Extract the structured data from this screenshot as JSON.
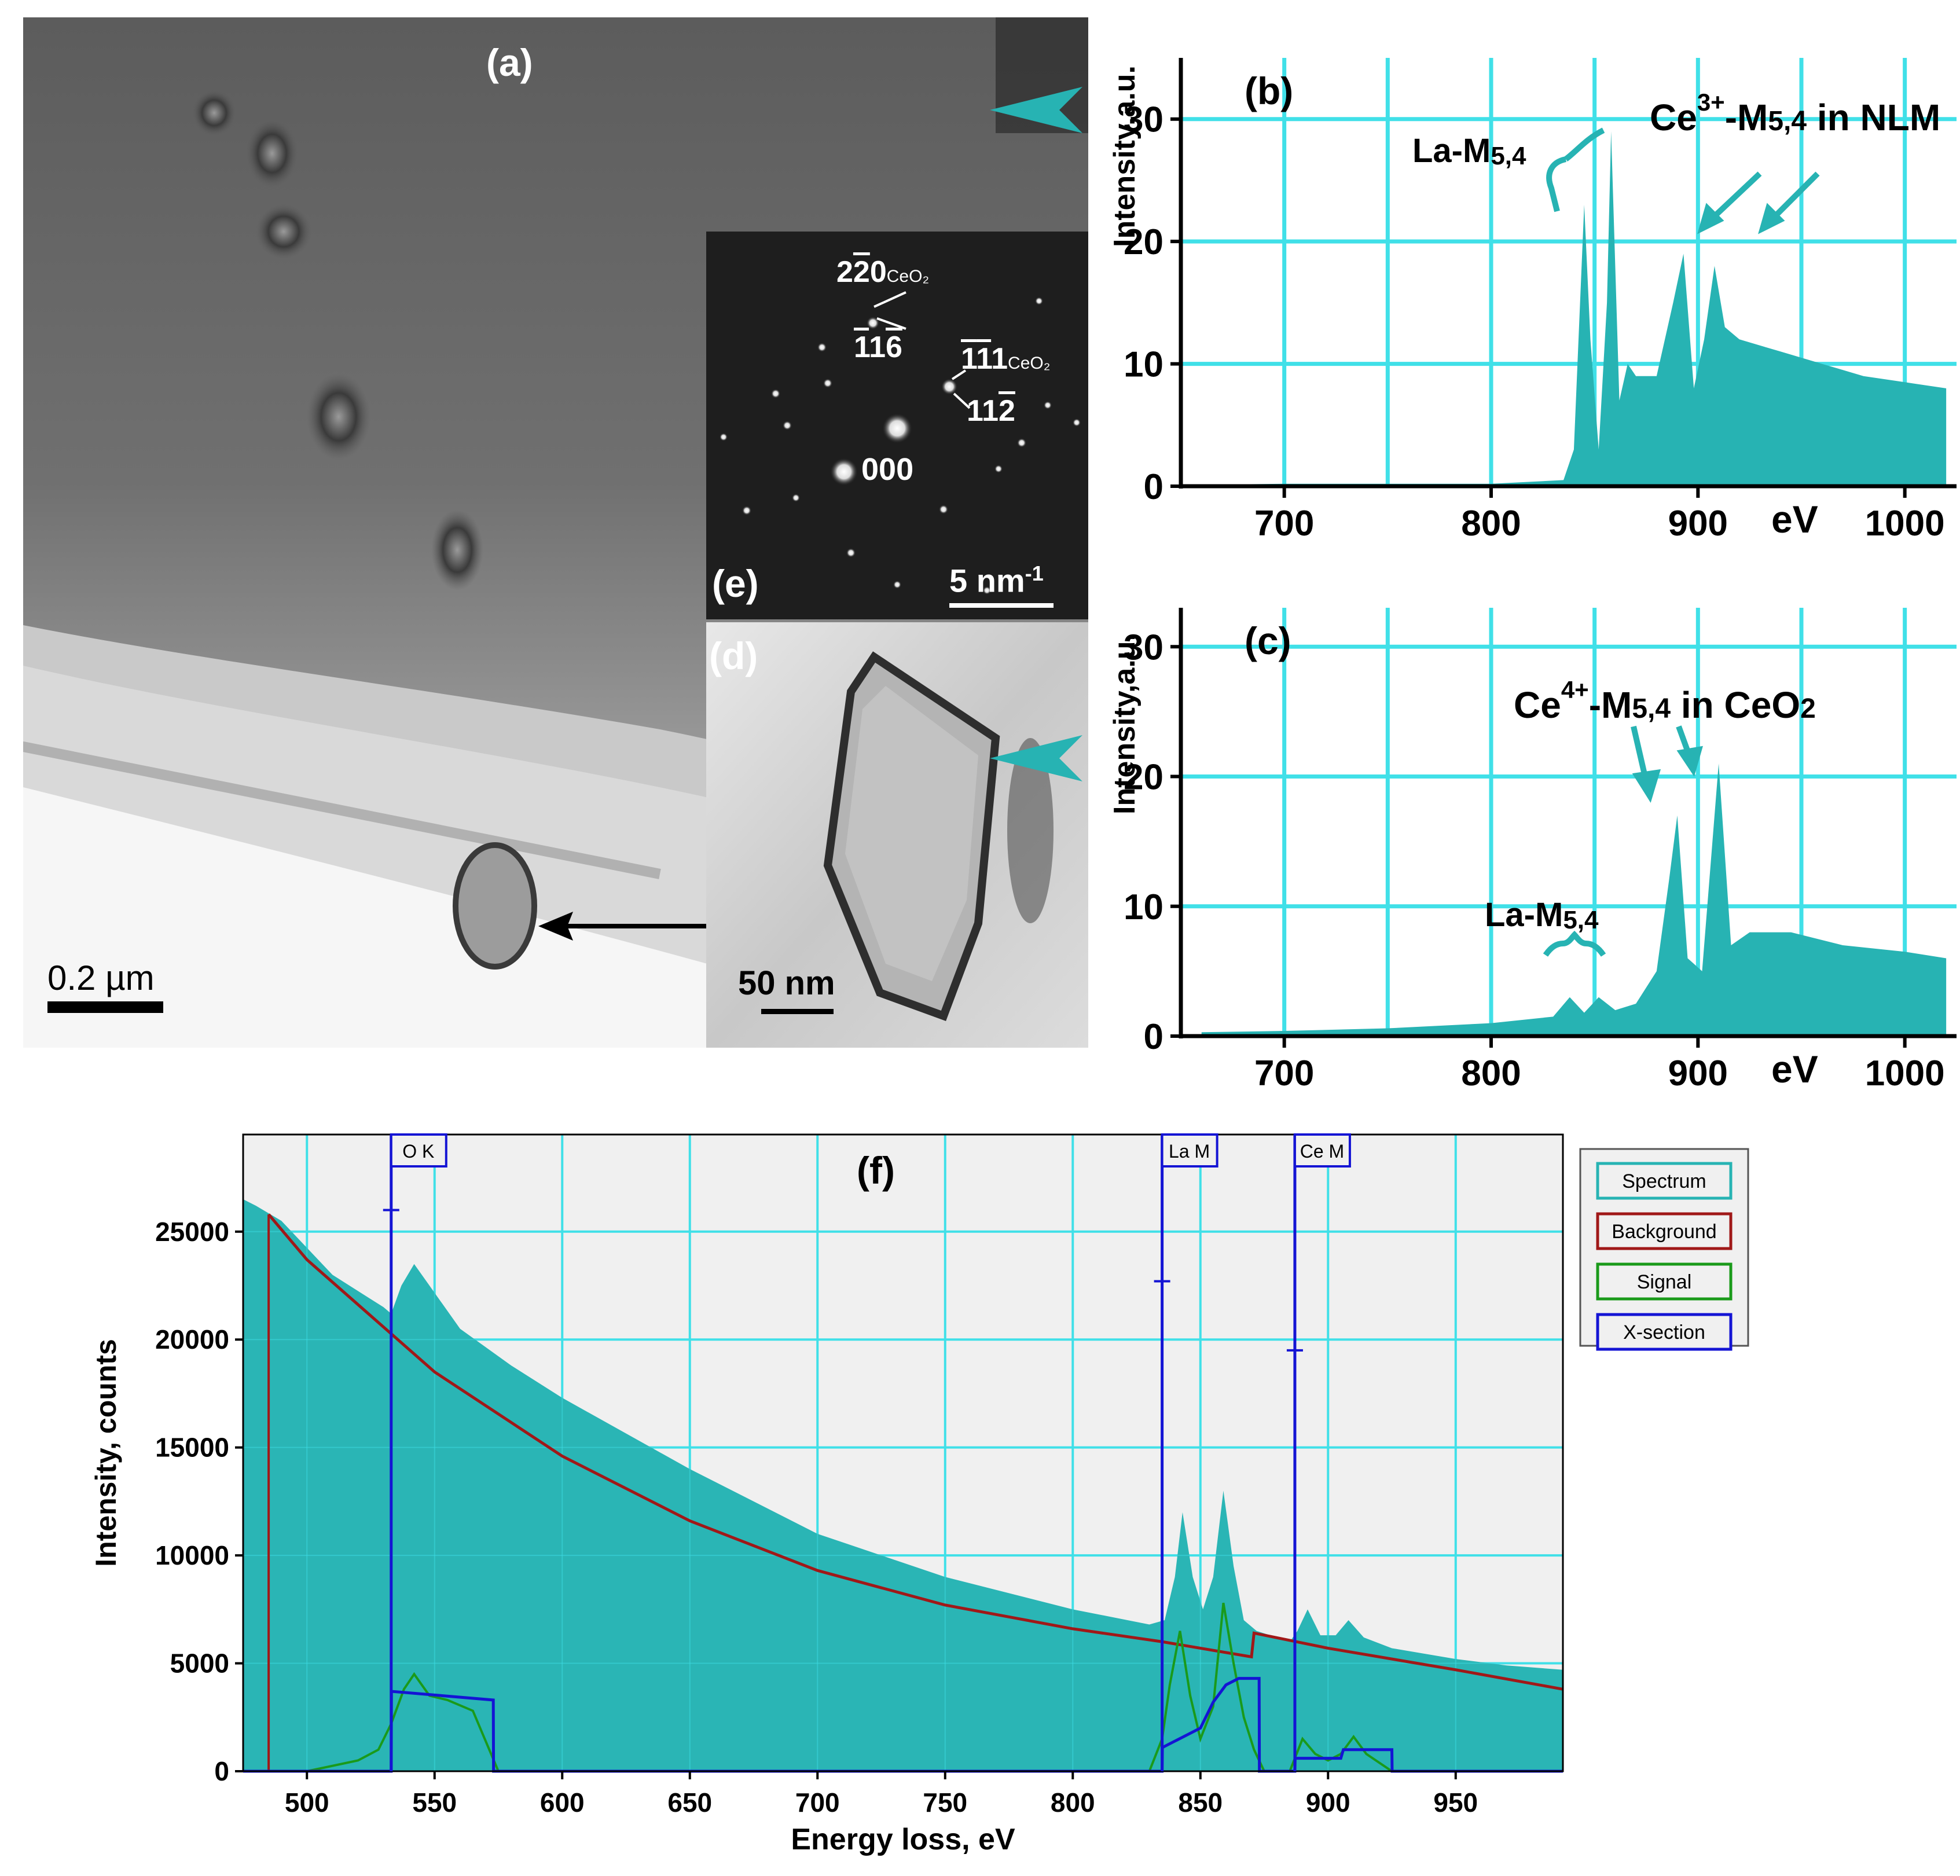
{
  "panels": {
    "a": {
      "label": "(a)",
      "scale_bar": "0.2 µm"
    },
    "d": {
      "label": "(d)",
      "scale_bar": "50 nm"
    },
    "e": {
      "label": "(e)",
      "scale_bar": "5 nm",
      "scale_sup": "-1",
      "spots": {
        "s1": "2",
        "s1b": "2",
        "s1bar": "̄",
        "s1c": "0",
        "s1sub": "CeO₂",
        "s2": "1",
        "s2b": "1",
        "s2c": "6",
        "s3": "1",
        "s3b": "1",
        "s3c": "1",
        "s3sub": "CeO₂",
        "s4": "1",
        "s4b": "1",
        "s4c": "2",
        "s5": "000"
      }
    }
  },
  "colors": {
    "teal": "#27b3b3",
    "grid": "#40e0e8",
    "background_curve": "#a01818",
    "signal": "#1a9a1a",
    "xsection": "#1414d4",
    "fill_f": "#2ab5b5",
    "panel_f_bg": "#f0f0f0"
  },
  "chart_data": [
    {
      "id": "b",
      "type": "area",
      "panel_label": "(b)",
      "ylabel": "Intensity,a.u.",
      "xlabel": "eV",
      "xlim": [
        650,
        1025
      ],
      "ylim": [
        0,
        35
      ],
      "xticks": [
        700,
        800,
        900,
        1000
      ],
      "yticks": [
        0,
        10,
        20,
        30
      ],
      "grid": true,
      "annotations": [
        {
          "text": "La-M",
          "sub": "5,4"
        },
        {
          "text": "Ce",
          "sup": "3+",
          "rest": "-M",
          "sub": "5,4",
          "tail": " in NLM"
        }
      ],
      "x": [
        650,
        700,
        800,
        835,
        840,
        845,
        848,
        852,
        856,
        858,
        862,
        866,
        870,
        880,
        888,
        893,
        898,
        903,
        908,
        913,
        920,
        940,
        960,
        980,
        1000,
        1020
      ],
      "values": [
        0.1,
        0.2,
        0.2,
        0.5,
        3,
        23,
        12,
        3,
        15,
        29,
        7,
        10,
        9,
        9,
        15,
        19,
        8,
        12,
        18,
        13,
        12,
        11,
        10,
        9,
        8.5,
        8
      ]
    },
    {
      "id": "c",
      "type": "area",
      "panel_label": "(c)",
      "ylabel": "Intensity,a.u.",
      "xlabel": "eV",
      "xlim": [
        650,
        1025
      ],
      "ylim": [
        0,
        33
      ],
      "xticks": [
        700,
        800,
        900,
        1000
      ],
      "yticks": [
        0,
        10,
        20,
        30
      ],
      "grid": true,
      "annotations": [
        {
          "text": "Ce",
          "sup": "4+",
          "rest": "-M",
          "sub": "5,4",
          "tail": " in CeO",
          "tail_sub": "2"
        },
        {
          "text": "La-M",
          "sub": "5,4"
        }
      ],
      "x": [
        660,
        700,
        750,
        800,
        830,
        838,
        845,
        852,
        860,
        870,
        880,
        886,
        890,
        895,
        902,
        906,
        910,
        916,
        925,
        945,
        970,
        1000,
        1020
      ],
      "values": [
        0.3,
        0.4,
        0.6,
        1,
        1.5,
        3,
        1.8,
        3,
        2,
        2.5,
        5,
        12,
        17,
        6,
        5,
        13,
        21,
        7,
        8,
        8,
        7,
        6.5,
        6
      ]
    },
    {
      "id": "f",
      "type": "area",
      "panel_label": "(f)",
      "ylabel": "Intensity, counts",
      "xlabel": "Energy loss, eV",
      "xlim": [
        475,
        992
      ],
      "ylim": [
        0,
        29500
      ],
      "xticks": [
        500,
        550,
        600,
        650,
        700,
        750,
        800,
        850,
        900,
        950
      ],
      "yticks": [
        0,
        5000,
        10000,
        15000,
        20000,
        25000
      ],
      "grid": true,
      "legend_position": "right",
      "legend": [
        "Spectrum",
        "Background",
        "Signal",
        "X-section"
      ],
      "edge_labels": [
        "O K",
        "La M",
        "Ce M"
      ],
      "edges_x": [
        533,
        835,
        887
      ],
      "markers": [
        {
          "x": 533,
          "y": 26000
        },
        {
          "x": 835,
          "y": 22700
        },
        {
          "x": 887,
          "y": 19500
        }
      ],
      "spectrum": {
        "x": [
          475,
          480,
          490,
          510,
          530,
          533,
          537,
          542,
          548,
          560,
          580,
          600,
          650,
          700,
          750,
          800,
          830,
          836,
          840,
          843,
          847,
          851,
          855,
          859,
          863,
          867,
          872,
          880,
          885,
          888,
          892,
          897,
          903,
          908,
          914,
          925,
          950,
          970,
          992
        ],
        "values": [
          26500,
          26200,
          25500,
          23000,
          21500,
          21200,
          22500,
          23500,
          22500,
          20500,
          18800,
          17300,
          14000,
          11000,
          9000,
          7500,
          6800,
          7000,
          9000,
          12000,
          9000,
          7500,
          9000,
          13000,
          9500,
          7000,
          6500,
          6200,
          6000,
          6500,
          7500,
          6300,
          6300,
          7000,
          6200,
          5700,
          5200,
          4900,
          4700
        ]
      },
      "background": {
        "x": [
          485,
          500,
          550,
          600,
          650,
          700,
          750,
          800,
          835,
          870,
          871,
          900,
          950,
          992
        ],
        "values": [
          25800,
          23700,
          18500,
          14600,
          11600,
          9300,
          7700,
          6600,
          6000,
          5300,
          6400,
          5700,
          4700,
          3800
        ]
      },
      "signal": {
        "x": [
          500,
          520,
          528,
          533,
          538,
          542,
          548,
          555,
          565,
          575,
          830,
          835,
          838,
          842,
          846,
          850,
          855,
          859,
          863,
          867,
          871,
          875,
          885,
          890,
          895,
          900,
          905,
          910,
          915,
          925
        ],
        "values": [
          0,
          500,
          1000,
          2200,
          3800,
          4500,
          3500,
          3300,
          2800,
          0,
          0,
          1500,
          4000,
          6500,
          3500,
          1500,
          3000,
          7800,
          5000,
          2500,
          1000,
          0,
          0,
          1500,
          800,
          500,
          800,
          1600,
          800,
          0
        ]
      },
      "xsection": {
        "x": [
          475,
          533,
          533.1,
          553,
          573,
          573.1,
          835,
          835.1,
          850,
          855,
          860,
          865,
          870,
          873,
          873.1,
          887,
          887.1,
          905,
          906,
          925,
          925.1,
          992
        ],
        "values": [
          0,
          0,
          3700,
          3500,
          3300,
          0,
          0,
          1100,
          2000,
          3200,
          4000,
          4300,
          4300,
          4300,
          0,
          0,
          600,
          600,
          1000,
          1000,
          0,
          0
        ]
      }
    }
  ]
}
